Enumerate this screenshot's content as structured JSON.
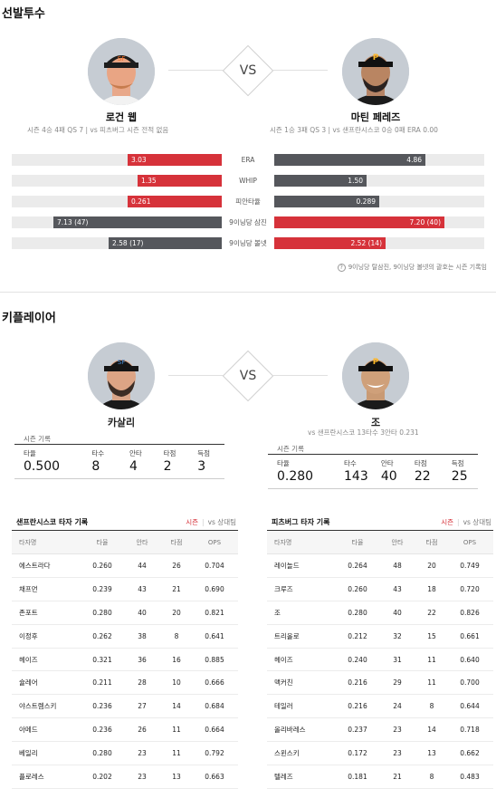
{
  "starting_pitchers": {
    "title": "선발투수",
    "vs": "VS",
    "away": {
      "name": "로건 웹",
      "record": "시즌 4승 4패 QS 7   |   vs 피츠버그 시즌 전적 없음"
    },
    "home": {
      "name": "마틴 페레즈",
      "record": "시즌 1승 3패 QS 3   |   vs 샌프란시스코 0승 0패 ERA 0.00"
    },
    "stats": [
      {
        "label": "ERA",
        "away": "3.03",
        "home": "4.86",
        "away_ratio": 0.45,
        "home_ratio": 0.72,
        "away_color": "red",
        "home_color": "gray"
      },
      {
        "label": "WHIP",
        "away": "1.35",
        "home": "1.50",
        "away_ratio": 0.4,
        "home_ratio": 0.44,
        "away_color": "red",
        "home_color": "gray"
      },
      {
        "label": "피안타율",
        "away": "0.261",
        "home": "0.289",
        "away_ratio": 0.45,
        "home_ratio": 0.5,
        "away_color": "red",
        "home_color": "gray"
      },
      {
        "label": "9이닝당 삼진",
        "away": "7.13 (47)",
        "home": "7.20 (40)",
        "away_ratio": 0.8,
        "home_ratio": 0.81,
        "away_color": "gray",
        "home_color": "red"
      },
      {
        "label": "9이닝당 볼넷",
        "away": "2.58 (17)",
        "home": "2.52 (14)",
        "away_ratio": 0.54,
        "home_ratio": 0.53,
        "away_color": "gray",
        "home_color": "red"
      }
    ],
    "note": "9이닝당 탈삼진, 9이닝당 볼넷의 괄호는 시즌 기록임"
  },
  "key_players": {
    "title": "키플레이어",
    "vs": "VS",
    "away": {
      "name": "카살리",
      "record": "",
      "caption": "시즌 기록",
      "stats": [
        {
          "k": "타율",
          "v": "0.500"
        },
        {
          "k": "타수",
          "v": "8"
        },
        {
          "k": "안타",
          "v": "4"
        },
        {
          "k": "타점",
          "v": "2"
        },
        {
          "k": "득점",
          "v": "3"
        }
      ]
    },
    "home": {
      "name": "조",
      "record": "vs 샌프란시스코  13타수 3안타 0.231",
      "caption": "시즌 기록",
      "stats": [
        {
          "k": "타율",
          "v": "0.280"
        },
        {
          "k": "타수",
          "v": "143"
        },
        {
          "k": "안타",
          "v": "40"
        },
        {
          "k": "타점",
          "v": "22"
        },
        {
          "k": "득점",
          "v": "25"
        }
      ]
    }
  },
  "batter_tables": {
    "tab_season": "시즌",
    "tab_vs": "vs 상대팀",
    "headers": [
      "타자명",
      "타율",
      "안타",
      "타점",
      "OPS"
    ],
    "away": {
      "title": "샌프란시스코 타자 기록",
      "rows": [
        [
          "에스트라다",
          "0.260",
          "44",
          "26",
          "0.704"
        ],
        [
          "채프먼",
          "0.239",
          "43",
          "21",
          "0.690"
        ],
        [
          "존포트",
          "0.280",
          "40",
          "20",
          "0.821"
        ],
        [
          "이정후",
          "0.262",
          "38",
          "8",
          "0.641"
        ],
        [
          "헤이즈",
          "0.321",
          "36",
          "16",
          "0.885"
        ],
        [
          "슐레어",
          "0.211",
          "28",
          "10",
          "0.666"
        ],
        [
          "야스트렘스키",
          "0.236",
          "27",
          "14",
          "0.684"
        ],
        [
          "아메드",
          "0.236",
          "26",
          "11",
          "0.664"
        ],
        [
          "베일리",
          "0.280",
          "23",
          "11",
          "0.792"
        ],
        [
          "플로레스",
          "0.202",
          "23",
          "13",
          "0.663"
        ]
      ]
    },
    "home": {
      "title": "피츠버그 타자 기록",
      "rows": [
        [
          "레이놀드",
          "0.264",
          "48",
          "20",
          "0.749"
        ],
        [
          "크루즈",
          "0.260",
          "43",
          "18",
          "0.720"
        ],
        [
          "조",
          "0.280",
          "40",
          "22",
          "0.826"
        ],
        [
          "트리올로",
          "0.212",
          "32",
          "15",
          "0.661"
        ],
        [
          "헤이즈",
          "0.240",
          "31",
          "11",
          "0.640"
        ],
        [
          "맥커친",
          "0.216",
          "29",
          "11",
          "0.700"
        ],
        [
          "테일러",
          "0.216",
          "24",
          "8",
          "0.644"
        ],
        [
          "올리바레스",
          "0.237",
          "23",
          "14",
          "0.718"
        ],
        [
          "스윈스키",
          "0.172",
          "23",
          "13",
          "0.662"
        ],
        [
          "텔레즈",
          "0.181",
          "21",
          "8",
          "0.483"
        ]
      ]
    }
  }
}
